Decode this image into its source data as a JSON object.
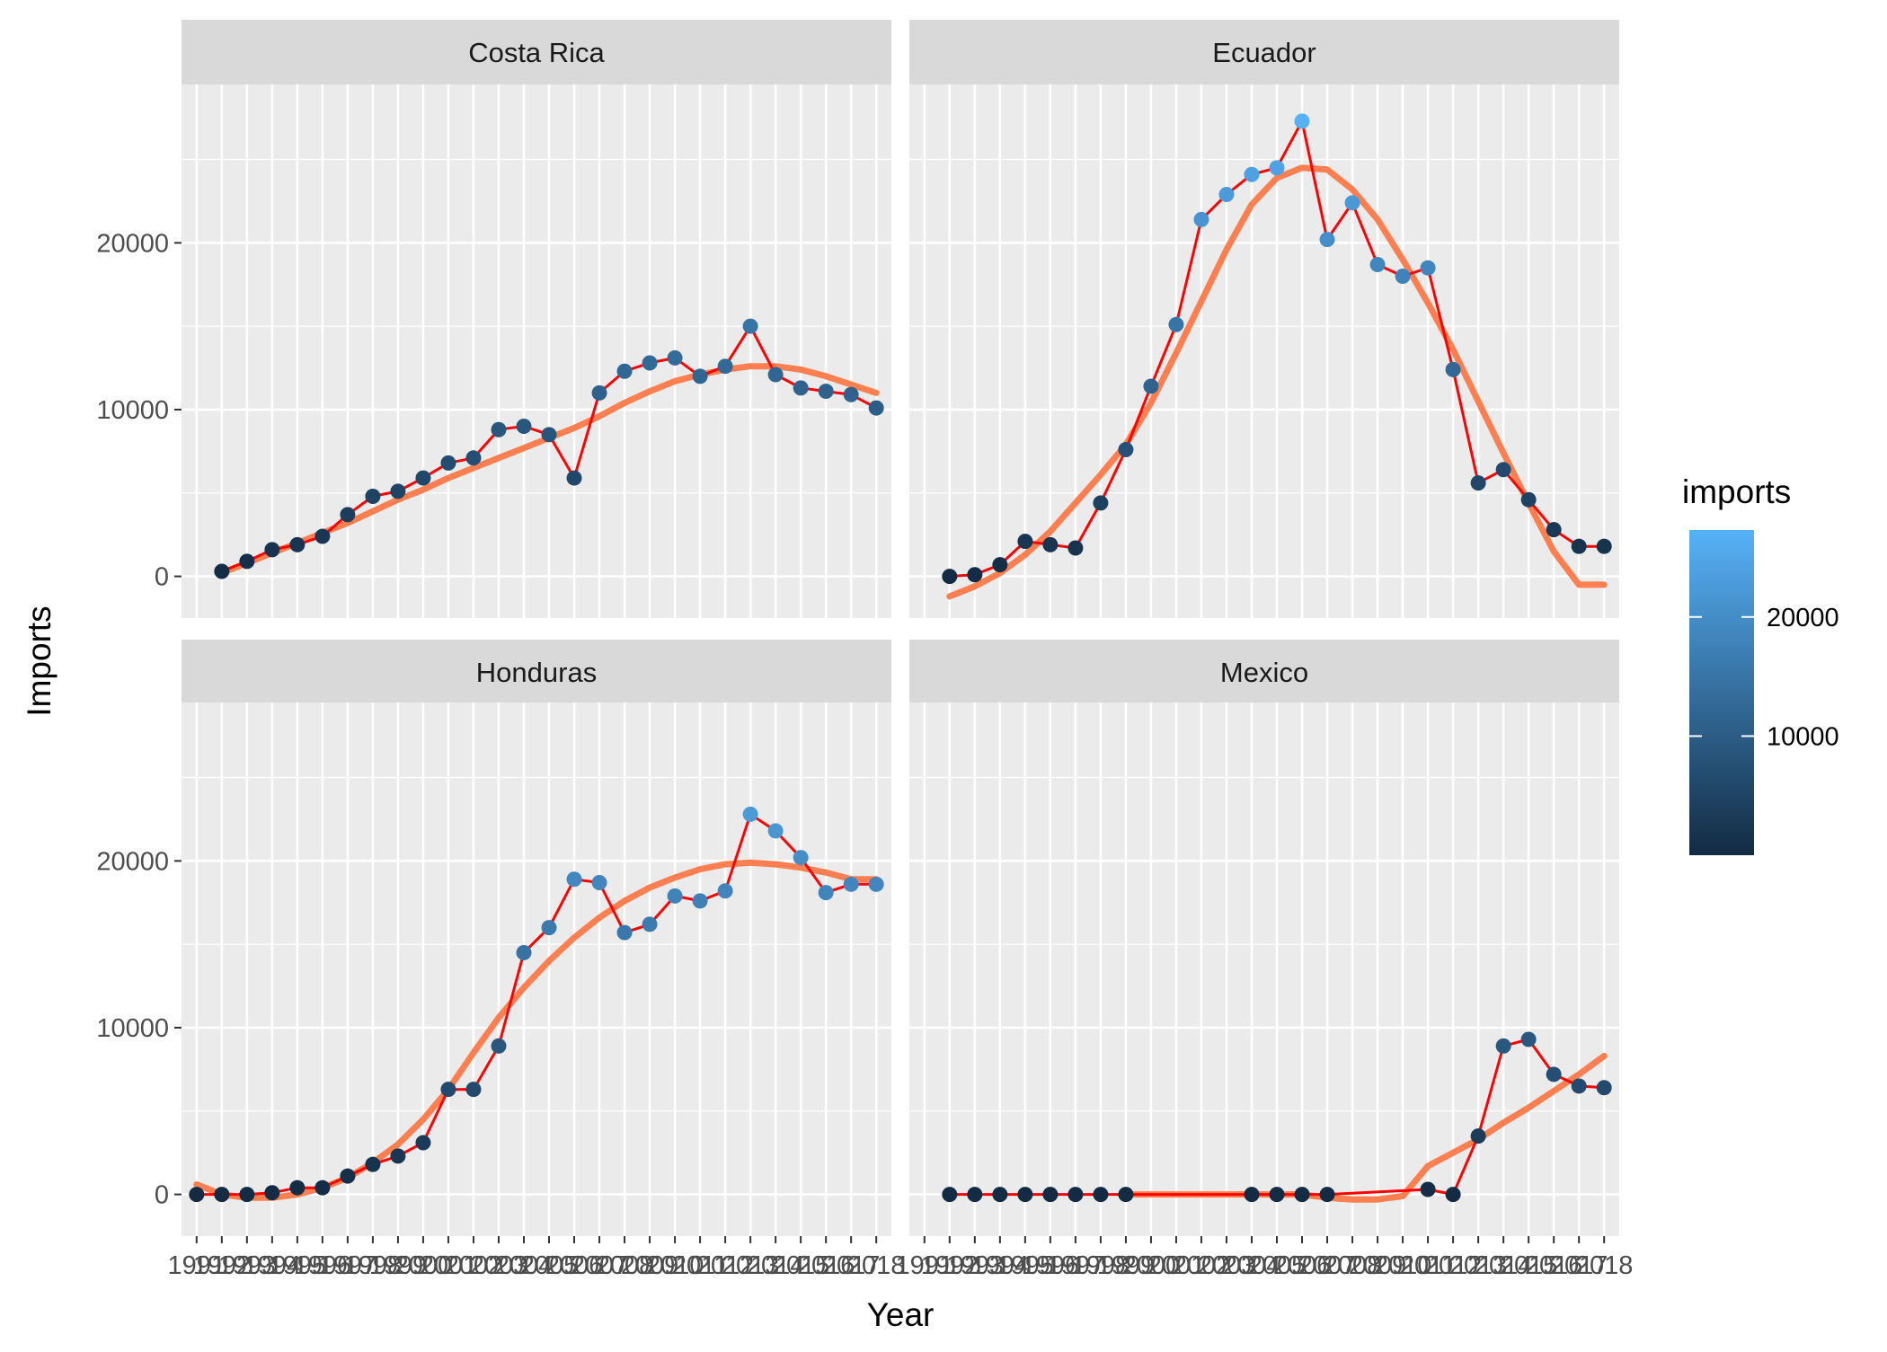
{
  "chart_data": {
    "type": "line",
    "facets": [
      "Costa Rica",
      "Ecuador",
      "Honduras",
      "Mexico"
    ],
    "xlabel": "Year",
    "ylabel": "Imports",
    "ylim": [
      -2500,
      29500
    ],
    "y_ticks": [
      0,
      10000,
      20000
    ],
    "x": [
      1991,
      1992,
      1993,
      1994,
      1995,
      1996,
      1997,
      1998,
      1999,
      2000,
      2001,
      2002,
      2003,
      2004,
      2005,
      2006,
      2007,
      2008,
      2009,
      2010,
      2011,
      2012,
      2013,
      2014,
      2015,
      2016,
      2017,
      2018
    ],
    "x_tick_labels": [
      "1991",
      "1992",
      "1993",
      "1994",
      "1995",
      "1996",
      "1997",
      "1998",
      "1999",
      "2000",
      "2001",
      "2002",
      "2003",
      "2004",
      "2005",
      "2006",
      "2007",
      "2008",
      "2009",
      "2010",
      "2011",
      "2012",
      "2013",
      "2014",
      "2015",
      "2016",
      "2017",
      "2018"
    ],
    "grid": true,
    "series": [
      {
        "name": "Costa Rica",
        "x": [
          1992,
          1993,
          1994,
          1995,
          1996,
          1997,
          1998,
          1999,
          2000,
          2001,
          2002,
          2003,
          2004,
          2005,
          2006,
          2007,
          2008,
          2009,
          2010,
          2011,
          2012,
          2013,
          2014,
          2015,
          2016,
          2017,
          2018
        ],
        "values": [
          300,
          900,
          1600,
          1900,
          2400,
          3700,
          4800,
          5100,
          5900,
          6800,
          7100,
          8800,
          9000,
          8500,
          5900,
          11000,
          12300,
          12800,
          13100,
          12000,
          12600,
          15000,
          12100,
          11300,
          11100,
          10900,
          10100
        ],
        "smooth": [
          200,
          800,
          1400,
          2000,
          2600,
          3200,
          3900,
          4600,
          5200,
          5900,
          6500,
          7100,
          7700,
          8300,
          8900,
          9600,
          10400,
          11100,
          11700,
          12100,
          12400,
          12600,
          12600,
          12400,
          12000,
          11500,
          11000
        ]
      },
      {
        "name": "Ecuador",
        "x": [
          1992,
          1993,
          1994,
          1995,
          1996,
          1997,
          1998,
          1999,
          2000,
          2001,
          2002,
          2003,
          2004,
          2005,
          2006,
          2007,
          2008,
          2009,
          2010,
          2011,
          2012,
          2013,
          2014,
          2015,
          2016,
          2017,
          2018
        ],
        "values": [
          0,
          100,
          700,
          2100,
          1900,
          1700,
          4400,
          7600,
          11400,
          15100,
          21400,
          22900,
          24100,
          24500,
          27300,
          20200,
          22400,
          18700,
          18000,
          18500,
          12400,
          5600,
          6400,
          4600,
          2800,
          1800,
          1800
        ],
        "smooth": [
          -1200,
          -600,
          200,
          1300,
          2700,
          4400,
          6100,
          7900,
          10400,
          13400,
          16500,
          19600,
          22300,
          23900,
          24500,
          24400,
          23200,
          21400,
          19000,
          16400,
          13600,
          10500,
          7400,
          4400,
          1500,
          -500,
          -500
        ]
      },
      {
        "name": "Honduras",
        "x": [
          1991,
          1992,
          1993,
          1994,
          1995,
          1996,
          1997,
          1998,
          1999,
          2000,
          2001,
          2002,
          2003,
          2004,
          2005,
          2006,
          2007,
          2008,
          2009,
          2010,
          2011,
          2012,
          2013,
          2014,
          2015,
          2016,
          2017,
          2018
        ],
        "values": [
          0,
          0,
          0,
          100,
          400,
          400,
          1100,
          1800,
          2300,
          3100,
          6300,
          6300,
          8900,
          14500,
          16000,
          18900,
          18700,
          15700,
          16200,
          17900,
          17600,
          18200,
          22800,
          21800,
          20200,
          18100,
          18600,
          18600
        ],
        "smooth": [
          600,
          0,
          -200,
          -200,
          0,
          400,
          1000,
          1900,
          3000,
          4500,
          6300,
          8500,
          10600,
          12400,
          14000,
          15400,
          16600,
          17600,
          18400,
          19000,
          19500,
          19800,
          19900,
          19800,
          19600,
          19300,
          18900,
          18900
        ]
      },
      {
        "name": "Mexico",
        "x": [
          1992,
          1993,
          1994,
          1995,
          1996,
          1997,
          1998,
          1999,
          2004,
          2005,
          2006,
          2007,
          2011,
          2012,
          2013,
          2014,
          2015,
          2016,
          2017,
          2018
        ],
        "values": [
          0,
          0,
          0,
          0,
          0,
          0,
          0,
          0,
          0,
          0,
          0,
          0,
          300,
          0,
          3500,
          8900,
          9300,
          7200,
          6500,
          6400
        ],
        "smooth": [
          0,
          0,
          0,
          0,
          0,
          0,
          0,
          0,
          -200,
          -300,
          -300,
          -100,
          1700,
          2500,
          3300,
          4300,
          5200,
          6200,
          7200,
          8300
        ]
      }
    ],
    "legend": {
      "title": "imports",
      "labels": [
        "20000",
        "10000"
      ],
      "values": [
        20000,
        10000
      ],
      "range": [
        0,
        27300
      ],
      "placement": "right"
    },
    "colors": {
      "line": "#ff0000",
      "smooth": "#ff7f50",
      "point_low": "#132b43",
      "point_high": "#56b1f7",
      "panel_bg": "#ebebeb",
      "strip_bg": "#d9d9d9",
      "grid": "#ffffff"
    }
  }
}
